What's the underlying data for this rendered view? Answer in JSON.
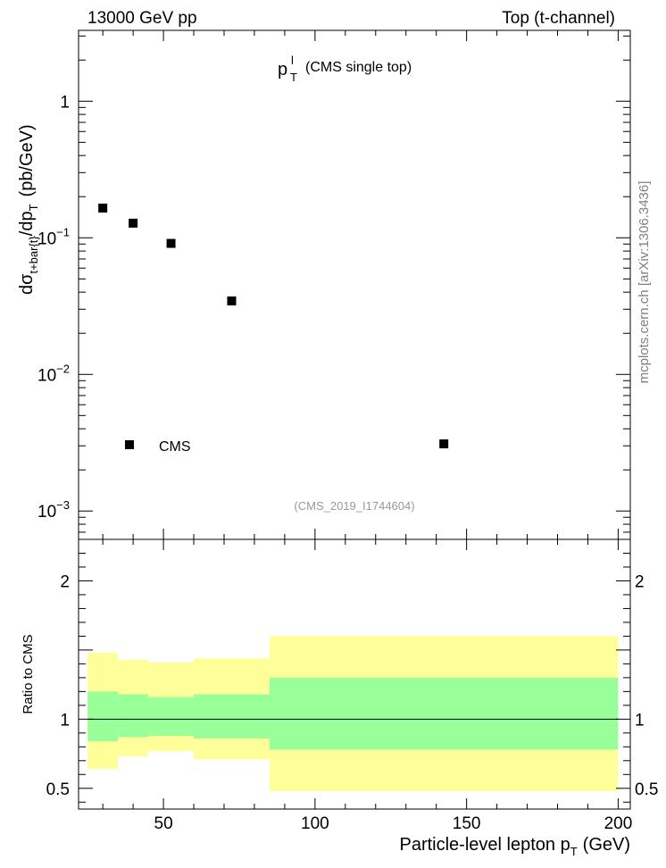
{
  "header": {
    "left": "13000 GeV pp",
    "right": "Top (t-channel)"
  },
  "side_label": "mcplots.cern.ch [arXiv:1306.3436]",
  "chart_data": [
    {
      "type": "scatter",
      "title_main": "p",
      "title_sup": "l",
      "title_sub": "T",
      "title_rest": "(CMS single top)",
      "watermark": "(CMS_2019_I1744604)",
      "ylabel": {
        "prefix": "dσ",
        "sub": "t+bar{t}",
        "mid": "/dp",
        "sub2": "T",
        "units": "(pb/GeV)"
      },
      "yscale": "log",
      "xlim": [
        22,
        204
      ],
      "ylim": [
        0.00062,
        3.3
      ],
      "yticks": [
        {
          "value": 1,
          "label": "1"
        },
        {
          "value": 0.1,
          "label": "10",
          "exp": "−1"
        },
        {
          "value": 0.01,
          "label": "10",
          "exp": "−2"
        },
        {
          "value": 0.001,
          "label": "10",
          "exp": "−3"
        }
      ],
      "legend": {
        "label": "CMS",
        "position": "bottom-left"
      },
      "series": [
        {
          "name": "CMS",
          "marker": "square",
          "color": "#000000",
          "x": [
            30,
            40,
            52.5,
            72.5,
            142.5
          ],
          "y": [
            0.165,
            0.128,
            0.091,
            0.0345,
            0.0031
          ]
        }
      ]
    },
    {
      "type": "area",
      "ylabel": "Ratio to CMS",
      "xlabel": {
        "text": "Particle-level lepton p",
        "sub": "T",
        "units": "(GeV)"
      },
      "xlim": [
        22,
        204
      ],
      "ylim": [
        0.35,
        2.3
      ],
      "xticks": [
        {
          "value": 50,
          "label": "50"
        },
        {
          "value": 100,
          "label": "100"
        },
        {
          "value": 150,
          "label": "150"
        },
        {
          "value": 200,
          "label": "200"
        }
      ],
      "yticks": [
        {
          "value": 0.5,
          "label": "0.5"
        },
        {
          "value": 1,
          "label": "1"
        },
        {
          "value": 2,
          "label": "2"
        }
      ],
      "reference_line": 1,
      "bins": [
        25,
        35,
        45,
        60,
        85,
        200
      ],
      "bands": [
        {
          "name": "total",
          "color": "#ffff99",
          "low": [
            0.64,
            0.73,
            0.77,
            0.71,
            0.48
          ],
          "high": [
            1.48,
            1.43,
            1.41,
            1.44,
            1.6
          ]
        },
        {
          "name": "stat",
          "color": "#99ff99",
          "low": [
            0.84,
            0.87,
            0.88,
            0.86,
            0.78
          ],
          "high": [
            1.2,
            1.18,
            1.16,
            1.18,
            1.3
          ]
        }
      ]
    }
  ]
}
